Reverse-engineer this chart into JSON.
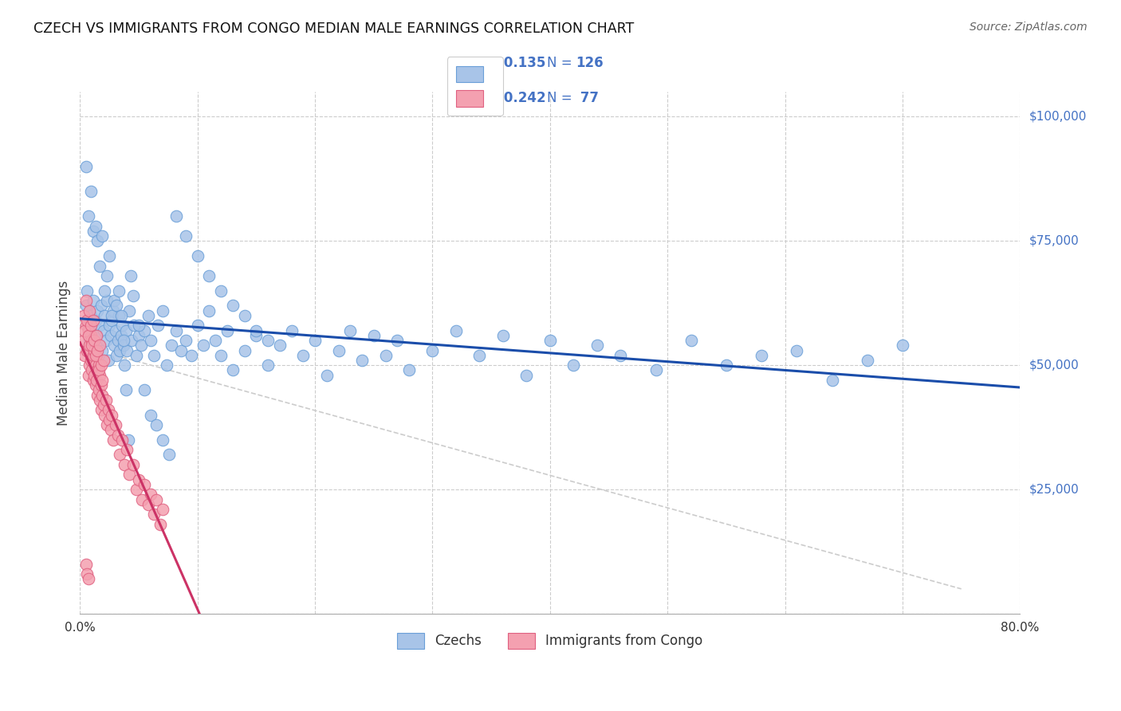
{
  "title": "CZECH VS IMMIGRANTS FROM CONGO MEDIAN MALE EARNINGS CORRELATION CHART",
  "source": "Source: ZipAtlas.com",
  "ylabel": "Median Male Earnings",
  "y_tick_labels": [
    "$25,000",
    "$50,000",
    "$75,000",
    "$100,000"
  ],
  "y_tick_values": [
    25000,
    50000,
    75000,
    100000
  ],
  "y_right_color": "#4472c4",
  "czech_color": "#a8c4e8",
  "czech_edge_color": "#6a9fd8",
  "congo_color": "#f4a0b0",
  "congo_edge_color": "#e06080",
  "trend_czech_color": "#1a4daa",
  "trend_congo_color": "#cc3366",
  "diag_color": "#cccccc",
  "legend_label_czech": "Czechs",
  "legend_label_congo": "Immigrants from Congo",
  "xlim": [
    0.0,
    0.8
  ],
  "ylim": [
    0,
    105000
  ],
  "czech_x": [
    0.005,
    0.006,
    0.007,
    0.008,
    0.009,
    0.01,
    0.011,
    0.012,
    0.013,
    0.014,
    0.015,
    0.016,
    0.017,
    0.018,
    0.019,
    0.02,
    0.021,
    0.022,
    0.023,
    0.024,
    0.025,
    0.026,
    0.027,
    0.028,
    0.029,
    0.03,
    0.031,
    0.032,
    0.033,
    0.034,
    0.035,
    0.036,
    0.037,
    0.038,
    0.039,
    0.04,
    0.042,
    0.044,
    0.046,
    0.048,
    0.05,
    0.052,
    0.055,
    0.058,
    0.06,
    0.063,
    0.066,
    0.07,
    0.074,
    0.078,
    0.082,
    0.086,
    0.09,
    0.095,
    0.1,
    0.105,
    0.11,
    0.115,
    0.12,
    0.125,
    0.13,
    0.14,
    0.15,
    0.16,
    0.17,
    0.18,
    0.19,
    0.2,
    0.21,
    0.22,
    0.23,
    0.24,
    0.25,
    0.26,
    0.27,
    0.28,
    0.3,
    0.32,
    0.34,
    0.36,
    0.38,
    0.4,
    0.42,
    0.44,
    0.46,
    0.49,
    0.52,
    0.55,
    0.58,
    0.61,
    0.64,
    0.67,
    0.7,
    0.005,
    0.007,
    0.009,
    0.011,
    0.013,
    0.015,
    0.017,
    0.019,
    0.021,
    0.023,
    0.025,
    0.027,
    0.029,
    0.031,
    0.033,
    0.035,
    0.037,
    0.039,
    0.041,
    0.043,
    0.045,
    0.05,
    0.055,
    0.06,
    0.065,
    0.07,
    0.076,
    0.082,
    0.09,
    0.1,
    0.11,
    0.12,
    0.13,
    0.14,
    0.15,
    0.16
  ],
  "czech_y": [
    62000,
    65000,
    58000,
    55000,
    60000,
    57000,
    63000,
    52000,
    59000,
    56000,
    61000,
    54000,
    58000,
    62000,
    53000,
    57000,
    60000,
    55000,
    63000,
    51000,
    58000,
    56000,
    59000,
    61000,
    54000,
    57000,
    52000,
    55000,
    60000,
    53000,
    56000,
    58000,
    54000,
    50000,
    57000,
    53000,
    61000,
    55000,
    58000,
    52000,
    56000,
    54000,
    57000,
    60000,
    55000,
    52000,
    58000,
    61000,
    50000,
    54000,
    57000,
    53000,
    55000,
    52000,
    58000,
    54000,
    61000,
    55000,
    52000,
    57000,
    49000,
    53000,
    56000,
    50000,
    54000,
    57000,
    52000,
    55000,
    48000,
    53000,
    57000,
    51000,
    56000,
    52000,
    55000,
    49000,
    53000,
    57000,
    52000,
    56000,
    48000,
    55000,
    50000,
    54000,
    52000,
    49000,
    55000,
    50000,
    52000,
    53000,
    47000,
    51000,
    54000,
    90000,
    80000,
    85000,
    77000,
    78000,
    75000,
    70000,
    76000,
    65000,
    68000,
    72000,
    60000,
    63000,
    62000,
    65000,
    60000,
    55000,
    45000,
    35000,
    68000,
    64000,
    58000,
    45000,
    40000,
    38000,
    35000,
    32000,
    80000,
    76000,
    72000,
    68000,
    65000,
    62000,
    60000,
    57000,
    55000
  ],
  "congo_x": [
    0.003,
    0.004,
    0.005,
    0.006,
    0.007,
    0.007,
    0.008,
    0.008,
    0.009,
    0.009,
    0.01,
    0.01,
    0.011,
    0.011,
    0.012,
    0.012,
    0.013,
    0.013,
    0.014,
    0.014,
    0.015,
    0.015,
    0.016,
    0.016,
    0.017,
    0.017,
    0.018,
    0.018,
    0.019,
    0.02,
    0.021,
    0.022,
    0.023,
    0.024,
    0.025,
    0.026,
    0.027,
    0.028,
    0.03,
    0.032,
    0.034,
    0.036,
    0.038,
    0.04,
    0.042,
    0.045,
    0.048,
    0.05,
    0.053,
    0.055,
    0.058,
    0.06,
    0.063,
    0.065,
    0.068,
    0.07,
    0.003,
    0.004,
    0.005,
    0.006,
    0.007,
    0.008,
    0.009,
    0.01,
    0.011,
    0.012,
    0.013,
    0.014,
    0.015,
    0.016,
    0.017,
    0.018,
    0.019,
    0.02,
    0.005,
    0.006,
    0.007
  ],
  "congo_y": [
    55000,
    52000,
    58000,
    53000,
    57000,
    48000,
    54000,
    50000,
    56000,
    51000,
    55000,
    49000,
    52000,
    47000,
    53000,
    48000,
    50000,
    46000,
    52000,
    47000,
    49000,
    44000,
    50000,
    45000,
    48000,
    43000,
    46000,
    41000,
    44000,
    42000,
    40000,
    43000,
    38000,
    41000,
    39000,
    37000,
    40000,
    35000,
    38000,
    36000,
    32000,
    35000,
    30000,
    33000,
    28000,
    30000,
    25000,
    27000,
    23000,
    26000,
    22000,
    24000,
    20000,
    23000,
    18000,
    21000,
    60000,
    57000,
    63000,
    59000,
    56000,
    61000,
    58000,
    54000,
    59000,
    55000,
    52000,
    56000,
    53000,
    49000,
    54000,
    50000,
    47000,
    51000,
    10000,
    8000,
    7000
  ]
}
